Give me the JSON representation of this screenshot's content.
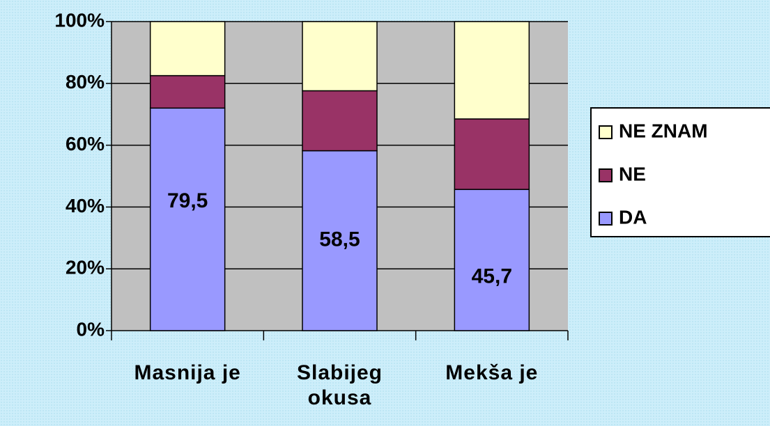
{
  "chart_data": {
    "type": "bar",
    "stacking": "percent",
    "categories": [
      "Masnija je",
      "Slabijeg okusa",
      "Mekša je"
    ],
    "series": [
      {
        "name": "DA",
        "color": "#9999ff",
        "values": [
          79.5,
          58.5,
          45.7
        ],
        "value_labels": [
          "79,5",
          "58,5",
          "45,7"
        ]
      },
      {
        "name": "NE",
        "color": "#993366",
        "values": [
          11.6,
          19.5,
          22.8
        ]
      },
      {
        "name": "NE ZNAM",
        "color": "#ffffcc",
        "values": [
          19.3,
          22.5,
          31.5
        ]
      }
    ],
    "ylim": [
      0,
      100
    ],
    "yticks": [
      {
        "value": 0,
        "label": "0%"
      },
      {
        "value": 20,
        "label": "20%"
      },
      {
        "value": 40,
        "label": "40%"
      },
      {
        "value": 60,
        "label": "60%"
      },
      {
        "value": 80,
        "label": "80%"
      },
      {
        "value": 100,
        "label": "100%"
      }
    ],
    "grid": true,
    "plot_background": "#c0c0c0",
    "legend": "right"
  }
}
